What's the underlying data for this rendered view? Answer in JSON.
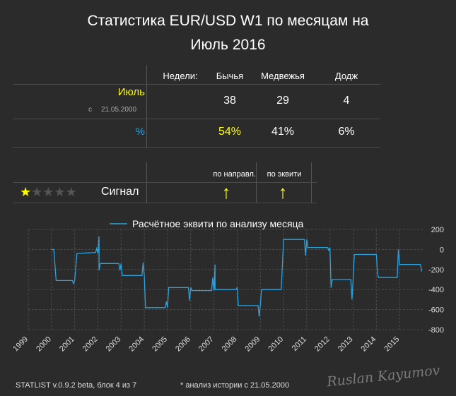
{
  "title_line1": "Статистика EUR/USD W1 по месяцам на",
  "title_line2": "Июль 2016",
  "table": {
    "headers": [
      "Недели:",
      "Бычья",
      "Медвежья",
      "Додж"
    ],
    "month_label": "Июль",
    "since_prefix": "с",
    "since_date": "21.05.2000",
    "counts": [
      "38",
      "29",
      "4"
    ],
    "percent_label": "%",
    "percents": [
      "54%",
      "41%",
      "6%"
    ]
  },
  "signal": {
    "label": "Сигнал",
    "rating": 1,
    "rating_max": 5,
    "col1_header": "по направл.",
    "col2_header": "по эквити",
    "arrow": "↑"
  },
  "colors": {
    "accent_yellow": "#ffff00",
    "line_blue": "#29a3e0",
    "background": "#2b2b2b"
  },
  "chart_data": {
    "type": "line",
    "series": [
      {
        "name": "Расчётное эквити по анализу месяца",
        "points": [
          [
            2000.0,
            0
          ],
          [
            2000.1,
            0
          ],
          [
            2000.2,
            -310
          ],
          [
            2000.9,
            -310
          ],
          [
            2000.95,
            -340
          ],
          [
            2001.0,
            -310
          ],
          [
            2001.1,
            -40
          ],
          [
            2001.9,
            -30
          ],
          [
            2001.95,
            10
          ],
          [
            2002.0,
            -40
          ],
          [
            2002.05,
            130
          ],
          [
            2002.05,
            -210
          ],
          [
            2002.1,
            -140
          ],
          [
            2002.9,
            -140
          ],
          [
            2002.95,
            -210
          ],
          [
            2003.0,
            -140
          ],
          [
            2003.05,
            -260
          ],
          [
            2003.9,
            -260
          ],
          [
            2003.95,
            -130
          ],
          [
            2004.0,
            -260
          ],
          [
            2004.05,
            -580
          ],
          [
            2004.9,
            -580
          ],
          [
            2004.95,
            -520
          ],
          [
            2005.0,
            -580
          ],
          [
            2005.05,
            -380
          ],
          [
            2005.9,
            -380
          ],
          [
            2005.95,
            -510
          ],
          [
            2006.0,
            -380
          ],
          [
            2006.05,
            -410
          ],
          [
            2006.9,
            -410
          ],
          [
            2006.95,
            -280
          ],
          [
            2007.0,
            -410
          ],
          [
            2007.05,
            -150
          ],
          [
            2007.05,
            -400
          ],
          [
            2007.95,
            -400
          ],
          [
            2008.0,
            -380
          ],
          [
            2008.05,
            -560
          ],
          [
            2008.9,
            -560
          ],
          [
            2008.95,
            -670
          ],
          [
            2009.0,
            -560
          ],
          [
            2009.05,
            -400
          ],
          [
            2009.9,
            -400
          ],
          [
            2010.0,
            100
          ],
          [
            2010.9,
            100
          ],
          [
            2010.95,
            -60
          ],
          [
            2011.0,
            100
          ],
          [
            2011.05,
            20
          ],
          [
            2011.9,
            20
          ],
          [
            2011.95,
            -10
          ],
          [
            2012.0,
            20
          ],
          [
            2012.05,
            -380
          ],
          [
            2012.1,
            -300
          ],
          [
            2012.9,
            -300
          ],
          [
            2012.95,
            -500
          ],
          [
            2013.0,
            -300
          ],
          [
            2013.05,
            -50
          ],
          [
            2013.9,
            -50
          ],
          [
            2014.0,
            -50
          ],
          [
            2014.05,
            -250
          ],
          [
            2014.1,
            -280
          ],
          [
            2014.9,
            -280
          ],
          [
            2014.95,
            0
          ],
          [
            2015.0,
            -150
          ],
          [
            2015.9,
            -150
          ],
          [
            2015.95,
            -220
          ]
        ]
      }
    ],
    "x_ticks": [
      "1999",
      "2000",
      "2001",
      "2002",
      "2003",
      "2004",
      "2005",
      "2006",
      "2007",
      "2008",
      "2009",
      "2010",
      "2011",
      "2012",
      "2013",
      "2014",
      "2015"
    ],
    "y_ticks": [
      200,
      0,
      -200,
      -400,
      -600,
      -800
    ],
    "xlim": [
      1999.0,
      2016.0
    ],
    "ylim": [
      -800,
      200
    ],
    "grid": true,
    "legend_position": "top-center"
  },
  "footer": {
    "version": "STATLIST v.0.9.2 beta, блок 4 из 7",
    "note": "* анализ истории с  21.05.2000",
    "watermark": "Ruslan Kayumov"
  }
}
